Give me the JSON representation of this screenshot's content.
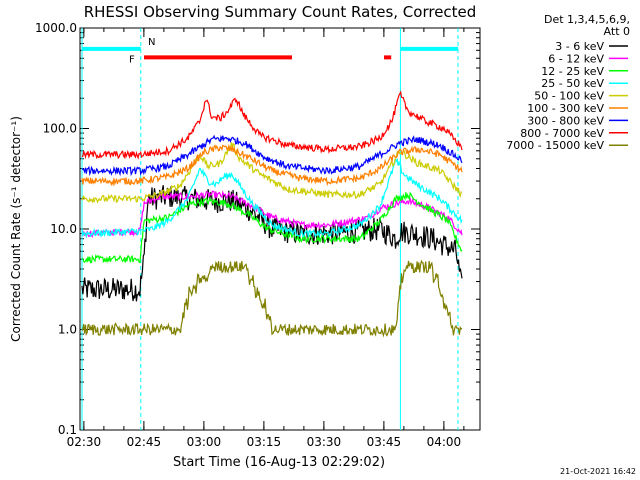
{
  "chart_data": {
    "type": "line",
    "title": "RHESSI Observing Summary Count Rates, Corrected",
    "xlabel": "Start Time (16-Aug-13 02:29:02)",
    "ylabel": "Corrected Count Rate (s⁻¹ detector⁻¹)",
    "y_scale": "log",
    "ylim": [
      0.1,
      1000
    ],
    "xlim_minutes": [
      0,
      100
    ],
    "x_ticks": [
      {
        "t": 0.97,
        "label": "02:30"
      },
      {
        "t": 15.97,
        "label": "02:45"
      },
      {
        "t": 30.97,
        "label": "03:00"
      },
      {
        "t": 45.97,
        "label": "03:15"
      },
      {
        "t": 60.97,
        "label": "03:30"
      },
      {
        "t": 75.97,
        "label": "03:45"
      },
      {
        "t": 90.97,
        "label": "04:00"
      }
    ],
    "y_ticks": [
      {
        "v": 0.1,
        "label": "0.1"
      },
      {
        "v": 1,
        "label": "1.0"
      },
      {
        "v": 10,
        "label": "10.0"
      },
      {
        "v": 100,
        "label": "100.0"
      },
      {
        "v": 1000,
        "label": "1000.0"
      }
    ],
    "legend_position": "top-right",
    "legend_header": [
      "Det 1,3,4,5,6,9,",
      "Att 0"
    ],
    "series": [
      {
        "name": "3 - 6 keV",
        "color": "#000000",
        "points": [
          [
            0.5,
            2.5
          ],
          [
            15,
            2.5
          ],
          [
            16,
            5
          ],
          [
            17,
            20
          ],
          [
            22,
            21
          ],
          [
            28,
            20
          ],
          [
            33,
            19
          ],
          [
            38,
            19
          ],
          [
            43,
            15
          ],
          [
            48,
            10
          ],
          [
            55,
            9
          ],
          [
            62,
            9
          ],
          [
            70,
            9.5
          ],
          [
            75,
            10
          ],
          [
            79,
            8
          ],
          [
            80,
            9.5
          ],
          [
            84,
            9
          ],
          [
            88,
            8
          ],
          [
            94,
            6
          ],
          [
            95.5,
            2.5
          ]
        ]
      },
      {
        "name": "6 - 12 keV",
        "color": "#ff00ff",
        "points": [
          [
            0.5,
            9
          ],
          [
            15,
            9.5
          ],
          [
            16,
            18
          ],
          [
            20,
            21
          ],
          [
            27,
            21
          ],
          [
            33,
            22
          ],
          [
            38,
            21
          ],
          [
            43,
            17
          ],
          [
            48,
            13
          ],
          [
            55,
            11
          ],
          [
            62,
            11
          ],
          [
            68,
            12
          ],
          [
            72,
            13
          ],
          [
            75,
            16
          ],
          [
            79,
            18
          ],
          [
            82,
            19
          ],
          [
            86,
            17
          ],
          [
            92,
            13
          ],
          [
            95.5,
            9
          ]
        ]
      },
      {
        "name": "12 - 25 keV",
        "color": "#00ff00",
        "points": [
          [
            0.5,
            5
          ],
          [
            15,
            5
          ],
          [
            16,
            12
          ],
          [
            22,
            13
          ],
          [
            28,
            18
          ],
          [
            32,
            19
          ],
          [
            37,
            18
          ],
          [
            42,
            14
          ],
          [
            47,
            10
          ],
          [
            55,
            8
          ],
          [
            62,
            8
          ],
          [
            70,
            8
          ],
          [
            75,
            12
          ],
          [
            79,
            20
          ],
          [
            82,
            22
          ],
          [
            86,
            17
          ],
          [
            92,
            12
          ],
          [
            95.5,
            6
          ]
        ]
      },
      {
        "name": "25 - 50 keV",
        "color": "#00ffff",
        "points": [
          [
            0.5,
            9
          ],
          [
            15,
            9.5
          ],
          [
            18,
            10
          ],
          [
            22,
            12
          ],
          [
            27,
            20
          ],
          [
            30,
            40
          ],
          [
            32,
            30
          ],
          [
            34,
            28
          ],
          [
            36,
            33
          ],
          [
            38,
            35
          ],
          [
            40,
            27
          ],
          [
            43,
            18
          ],
          [
            48,
            11
          ],
          [
            55,
            9
          ],
          [
            62,
            9
          ],
          [
            70,
            11
          ],
          [
            75,
            17
          ],
          [
            79,
            48
          ],
          [
            81,
            35
          ],
          [
            84,
            28
          ],
          [
            90,
            20
          ],
          [
            95.5,
            12
          ]
        ]
      },
      {
        "name": "50 - 100 keV",
        "color": "#cccc00",
        "points": [
          [
            0.5,
            20
          ],
          [
            15,
            20
          ],
          [
            20,
            22
          ],
          [
            25,
            27
          ],
          [
            30,
            55
          ],
          [
            32,
            42
          ],
          [
            35,
            45
          ],
          [
            38,
            70
          ],
          [
            40,
            50
          ],
          [
            45,
            35
          ],
          [
            52,
            25
          ],
          [
            62,
            22
          ],
          [
            70,
            22
          ],
          [
            75,
            28
          ],
          [
            80,
            60
          ],
          [
            84,
            46
          ],
          [
            90,
            38
          ],
          [
            95.5,
            22
          ]
        ]
      },
      {
        "name": "100 - 300 keV",
        "color": "#ff8000",
        "points": [
          [
            0.5,
            30
          ],
          [
            15,
            30
          ],
          [
            22,
            33
          ],
          [
            27,
            40
          ],
          [
            31,
            58
          ],
          [
            35,
            65
          ],
          [
            38,
            62
          ],
          [
            42,
            52
          ],
          [
            48,
            38
          ],
          [
            55,
            32
          ],
          [
            62,
            30
          ],
          [
            70,
            32
          ],
          [
            75,
            40
          ],
          [
            80,
            58
          ],
          [
            85,
            62
          ],
          [
            90,
            55
          ],
          [
            95.5,
            38
          ]
        ]
      },
      {
        "name": "300 - 800 keV",
        "color": "#0000ff",
        "points": [
          [
            0.5,
            38
          ],
          [
            15,
            38
          ],
          [
            22,
            42
          ],
          [
            28,
            58
          ],
          [
            33,
            78
          ],
          [
            37,
            80
          ],
          [
            41,
            72
          ],
          [
            46,
            52
          ],
          [
            52,
            42
          ],
          [
            62,
            38
          ],
          [
            70,
            42
          ],
          [
            75,
            55
          ],
          [
            80,
            72
          ],
          [
            84,
            78
          ],
          [
            90,
            68
          ],
          [
            95.5,
            48
          ]
        ]
      },
      {
        "name": "800 - 7000 keV",
        "color": "#ff0000",
        "points": [
          [
            0.5,
            55
          ],
          [
            15,
            55
          ],
          [
            22,
            60
          ],
          [
            27,
            80
          ],
          [
            30,
            120
          ],
          [
            31.5,
            200
          ],
          [
            33,
            130
          ],
          [
            35,
            125
          ],
          [
            37,
            150
          ],
          [
            39,
            200
          ],
          [
            41,
            135
          ],
          [
            45,
            85
          ],
          [
            52,
            68
          ],
          [
            62,
            62
          ],
          [
            70,
            66
          ],
          [
            75,
            80
          ],
          [
            78,
            120
          ],
          [
            80,
            220
          ],
          [
            82,
            150
          ],
          [
            86,
            120
          ],
          [
            91,
            100
          ],
          [
            95.5,
            65
          ]
        ]
      },
      {
        "name": "7000 - 15000 keV",
        "color": "#808000",
        "points": [
          [
            0.5,
            1
          ],
          [
            25,
            1
          ],
          [
            26,
            1.5
          ],
          [
            28,
            2.5
          ],
          [
            32,
            3.5
          ],
          [
            34,
            4.5
          ],
          [
            41,
            4.5
          ],
          [
            43,
            3
          ],
          [
            45,
            2
          ],
          [
            47,
            1.4
          ],
          [
            48.5,
            1
          ],
          [
            79,
            1
          ],
          [
            80,
            2.5
          ],
          [
            81,
            3.8
          ],
          [
            88,
            3.8
          ],
          [
            90,
            2.5
          ],
          [
            92,
            1.5
          ],
          [
            93,
            1
          ],
          [
            95.5,
            1
          ]
        ]
      }
    ],
    "vertical_lines": [
      {
        "t": 0.5,
        "style": "solid"
      },
      {
        "t": 15.2,
        "style": "dashed"
      },
      {
        "t": 80.1,
        "style": "solid"
      },
      {
        "t": 94.5,
        "style": "dashed"
      }
    ],
    "status_bars": [
      {
        "label": "N",
        "color": "#00ffff",
        "y": 620,
        "segments": [
          [
            0.5,
            15.2
          ],
          [
            80.1,
            94.5
          ]
        ]
      },
      {
        "label": "F",
        "color": "#ff0000",
        "y": 510,
        "segments": [
          [
            16,
            53
          ],
          [
            76,
            77.8
          ]
        ]
      }
    ],
    "footer_date": "21-Oct-2021 16:42"
  }
}
